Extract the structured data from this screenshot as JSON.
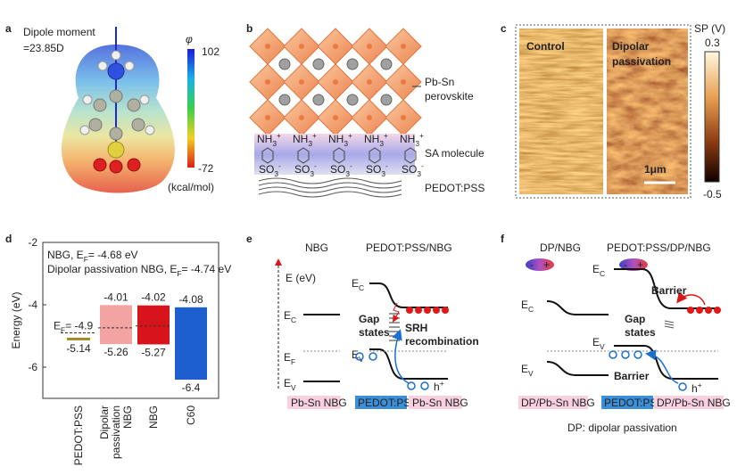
{
  "panel_labels": [
    "a",
    "b",
    "c",
    "d",
    "e",
    "f"
  ],
  "panel_a": {
    "lines": [
      "Dipole moment",
      "=23.85D"
    ],
    "colorbar": {
      "symbol": "φ",
      "max": 102,
      "min": -72,
      "unit": "(kcal/mol)"
    }
  },
  "panel_b": {
    "labels": [
      [
        "Pb-Sn",
        "perovskite"
      ],
      [
        "SA molecule"
      ],
      [
        "PEDOT:PSS"
      ]
    ],
    "cation": [
      "NH",
      "3",
      "+"
    ],
    "anion": [
      "SO",
      "3",
      "-"
    ]
  },
  "panel_c": {
    "images": [
      [
        "Control"
      ],
      [
        "Dipolar",
        "passivation"
      ]
    ],
    "scale_bar": "1μm",
    "colorbar": {
      "title": "SP (V)",
      "max": 0.3,
      "min": -0.5
    }
  },
  "chart_data": {
    "type": "floating-bar",
    "ylabel": "Energy (eV)",
    "ylim": [
      -7,
      -2
    ],
    "yticks": [
      -2,
      -4,
      -6
    ],
    "categories": [
      [
        "PEDOT:PSS"
      ],
      [
        "Dipolar",
        "passivation",
        "NBG"
      ],
      [
        "NBG"
      ],
      [
        "C60"
      ]
    ],
    "highs": [
      null,
      -4.01,
      -4.02,
      -4.08
    ],
    "lows": [
      -5.14,
      -5.26,
      -5.27,
      -6.4
    ],
    "colors": [
      "#a08a2a",
      "#f4a3a3",
      "#d7141c",
      "#1e5fcf"
    ],
    "fermi_levels": [
      -4.9,
      -4.74,
      -4.68
    ],
    "fermi_label": [
      "E",
      "F",
      "= -4.9"
    ],
    "notes": [
      [
        "NBG, E",
        "F",
        "= -4.68 eV"
      ],
      [
        "Dipolar passivation NBG, E",
        "F",
        "= -4.74 eV"
      ]
    ]
  },
  "panel_e": {
    "titles": [
      "NBG",
      "PEDOT:PSS/NBG"
    ],
    "axis": "E (eV)",
    "E": "E",
    "sub": {
      "C": "C",
      "F": "F",
      "V": "V"
    },
    "gap": [
      "Gap",
      "states"
    ],
    "srh": [
      "SRH",
      "recombination"
    ],
    "hole": [
      "h",
      "+"
    ],
    "layers": [
      "Pb-Sn NBG",
      "PEDOT:PSS",
      "Pb-Sn NBG"
    ]
  },
  "panel_f": {
    "titles": [
      "DP/NBG",
      "PEDOT:PSS/DP/NBG"
    ],
    "dipole": [
      "-",
      "+"
    ],
    "E": "E",
    "sub": {
      "C": "C",
      "V": "V"
    },
    "barrier": "Barrier",
    "gap": [
      "Gap",
      "states"
    ],
    "hole": [
      "h",
      "+"
    ],
    "layers": [
      "DP/Pb-Sn NBG",
      "PEDOT:PSS",
      "DP/Pb-Sn NBG"
    ],
    "footnote": "DP: dipolar passivation"
  }
}
